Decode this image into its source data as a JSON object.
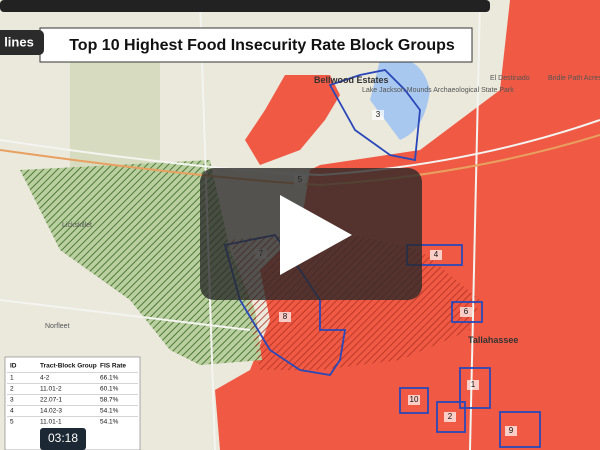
{
  "video": {
    "badge": "lines",
    "title": "Top 10 Highest Food Insecurity Rate Block Groups",
    "timestamp": "03:18"
  },
  "map": {
    "places": [
      "Bellwood Estates",
      "El Destinado",
      "Bridle Path Acres",
      "Lake Jackson Mounds Archaeological State Park",
      "Lickskillet",
      "Norfleet",
      "Tallahassee"
    ],
    "areas": [
      "1",
      "2",
      "3",
      "4",
      "5",
      "6",
      "7",
      "8",
      "9",
      "10"
    ]
  },
  "table": {
    "header": [
      "ID",
      "Tract-Block Group",
      "FIS Rate"
    ],
    "rows": [
      [
        "1",
        "4-2",
        "66.1%"
      ],
      [
        "2",
        "11.01-2",
        "60.1%"
      ],
      [
        "3",
        "22.07-1",
        "58.7%"
      ],
      [
        "4",
        "14.02-3",
        "54.1%"
      ],
      [
        "5",
        "11.01-1",
        "54.1%"
      ]
    ]
  }
}
